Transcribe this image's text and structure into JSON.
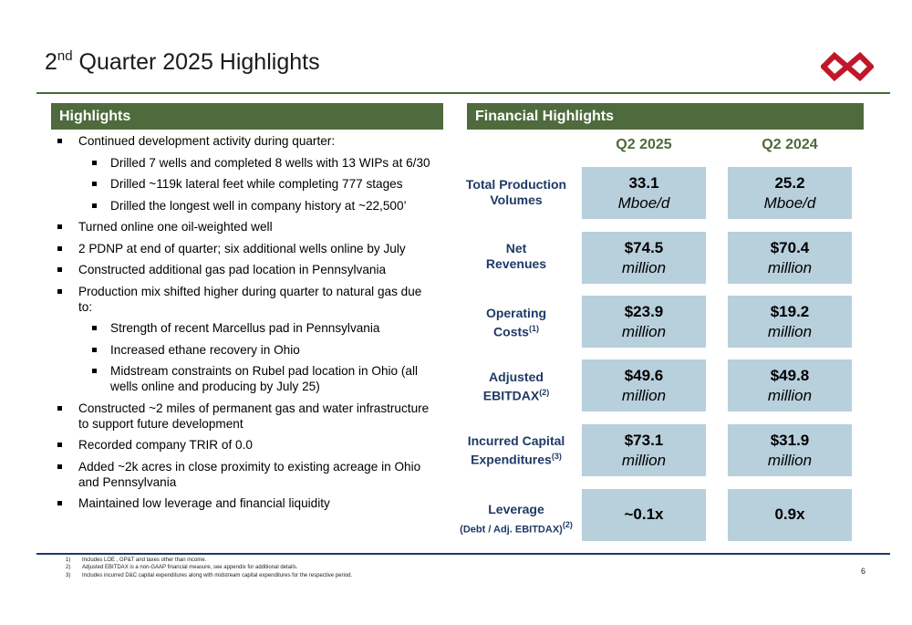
{
  "header": {
    "title_num": "2",
    "title_sup": "nd",
    "title_rest": " Quarter 2025 Highlights"
  },
  "colors": {
    "accent_green": "#4f6a3c",
    "box_blue": "#b8cfdc",
    "label_navy": "#1f3a66",
    "logo_red": "#c0172b"
  },
  "logo": {
    "icon": "infinity-logo-icon"
  },
  "highlights": {
    "heading": "Highlights",
    "items": [
      {
        "level": 1,
        "text": "Continued development activity during quarter:"
      },
      {
        "level": 2,
        "text": "Drilled 7 wells and completed 8 wells with 13 WIPs at 6/30"
      },
      {
        "level": 2,
        "text": "Drilled ~119k lateral feet while completing 777 stages"
      },
      {
        "level": 2,
        "text": "Drilled the longest well in company history at ~22,500’"
      },
      {
        "level": 1,
        "text": "Turned online one oil-weighted well"
      },
      {
        "level": 1,
        "text": "2 PDNP at end of quarter; six additional wells online by July"
      },
      {
        "level": 1,
        "text": "Constructed additional gas pad location in Pennsylvania"
      },
      {
        "level": 1,
        "text": "Production mix shifted higher during quarter to natural gas due to:"
      },
      {
        "level": 2,
        "text": "Strength of recent Marcellus pad in Pennsylvania"
      },
      {
        "level": 2,
        "text": "Increased ethane recovery in Ohio"
      },
      {
        "level": 2,
        "text": "Midstream constraints on Rubel pad location in Ohio (all wells online and producing by July 25)"
      },
      {
        "level": 1,
        "text": "Constructed ~2 miles of permanent gas and water infrastructure to support future development"
      },
      {
        "level": 1,
        "text": "Recorded company TRIR of 0.0"
      },
      {
        "level": 1,
        "text": "Added ~2k acres in close proximity to existing acreage in Ohio and Pennsylvania"
      },
      {
        "level": 1,
        "text": "Maintained low leverage and financial liquidity"
      }
    ]
  },
  "financial": {
    "heading": "Financial Highlights",
    "col1": "Q2 2025",
    "col2": "Q2 2024",
    "rows": [
      {
        "label_line1": "Total Production",
        "label_line2": "Volumes",
        "sup": "",
        "sub": "",
        "c1_value": "33.1",
        "c1_unit": "Mboe/d",
        "c2_value": "25.2",
        "c2_unit": "Mboe/d"
      },
      {
        "label_line1": "Net",
        "label_line2": "Revenues",
        "sup": "",
        "sub": "",
        "c1_value": "$74.5",
        "c1_unit": "million",
        "c2_value": "$70.4",
        "c2_unit": "million"
      },
      {
        "label_line1": "Operating",
        "label_line2": "Costs",
        "sup": "(1)",
        "sub": "",
        "c1_value": "$23.9",
        "c1_unit": "million",
        "c2_value": "$19.2",
        "c2_unit": "million"
      },
      {
        "label_line1": "Adjusted",
        "label_line2": "EBITDAX",
        "sup": "(2)",
        "sub": "",
        "c1_value": "$49.6",
        "c1_unit": "million",
        "c2_value": "$49.8",
        "c2_unit": "million"
      },
      {
        "label_line1": "Incurred Capital",
        "label_line2": "Expenditures",
        "sup": "(3)",
        "sub": "",
        "c1_value": "$73.1",
        "c1_unit": "million",
        "c2_value": "$31.9",
        "c2_unit": "million"
      },
      {
        "label_line1": "Leverage",
        "label_line2": "(Debt / Adj. EBITDAX)",
        "sup": "(2)",
        "sub": "yes",
        "c1_value": "~0.1x",
        "c1_unit": "",
        "c2_value": "0.9x",
        "c2_unit": ""
      }
    ]
  },
  "footnotes": [
    {
      "num": "1)",
      "text": "Includes LOE , GP&T and taxes other than income."
    },
    {
      "num": "2)",
      "text": "Adjusted EBITDAX is a non-GAAP financial measure, see appendix for additional details."
    },
    {
      "num": "3)",
      "text": "Includes incurred D&C capital expenditures along with midstream capital expenditures for the respective period."
    }
  ],
  "page_number": "6"
}
